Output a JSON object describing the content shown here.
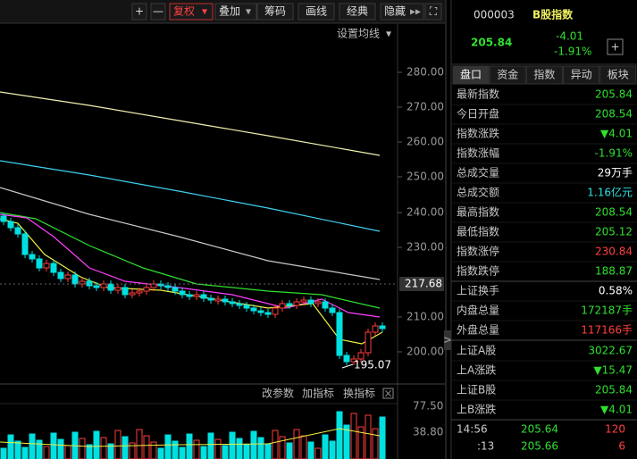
{
  "toolbar": {
    "buttons": [
      "+",
      "—",
      "复权",
      "叠加",
      "筹码",
      "画线",
      "经典",
      "隐藏"
    ]
  },
  "ma_settings": "设置均线",
  "price_axis": [
    "280.00",
    "270.00",
    "260.00",
    "250.00",
    "240.00",
    "230.00",
    "210.00",
    "200.00"
  ],
  "current_price_tag": "217.68",
  "low_marker": "195.07",
  "indicator_bar": [
    "改参数",
    "加指标",
    "换指标"
  ],
  "volume_axis": [
    "77.50",
    "38.80"
  ],
  "quote": {
    "code": "000003",
    "name": "B股指数",
    "price": "205.84",
    "change": "-4.01",
    "change_pct": "-1.91%"
  },
  "tabs": [
    "盘口",
    "资金",
    "指数",
    "异动",
    "板块"
  ],
  "rows": [
    {
      "label": "最新指数",
      "value": "205.84"
    },
    {
      "label": "今日开盘",
      "value": "208.54"
    },
    {
      "label": "指数涨跌",
      "value": "▼4.01"
    },
    {
      "label": "指数涨幅",
      "value": "-1.91%"
    },
    {
      "label": "总成交量",
      "value": "29万手"
    },
    {
      "label": "总成交额",
      "value": "1.16亿元"
    },
    {
      "label": "最高指数",
      "value": "208.54"
    },
    {
      "label": "最低指数",
      "value": "205.12"
    },
    {
      "label": "指数涨停",
      "value": "230.84"
    },
    {
      "label": "指数跌停",
      "value": "188.87"
    },
    {
      "label": "上证换手",
      "value": "0.58%"
    },
    {
      "label": "内盘总量",
      "value": "172187手"
    },
    {
      "label": "外盘总量",
      "value": "117166手"
    },
    {
      "label": "上证A股",
      "value": "3022.67"
    },
    {
      "label": "上A涨跌",
      "value": "▼15.47"
    },
    {
      "label": "上证B股",
      "value": "205.84"
    },
    {
      "label": "上B涨跌",
      "value": "▼4.01"
    }
  ],
  "ticks": [
    {
      "time": "14:56",
      "price": "205.64",
      "volume": "120"
    },
    {
      "time": ":13",
      "price": "205.66",
      "volume": "6"
    }
  ]
}
